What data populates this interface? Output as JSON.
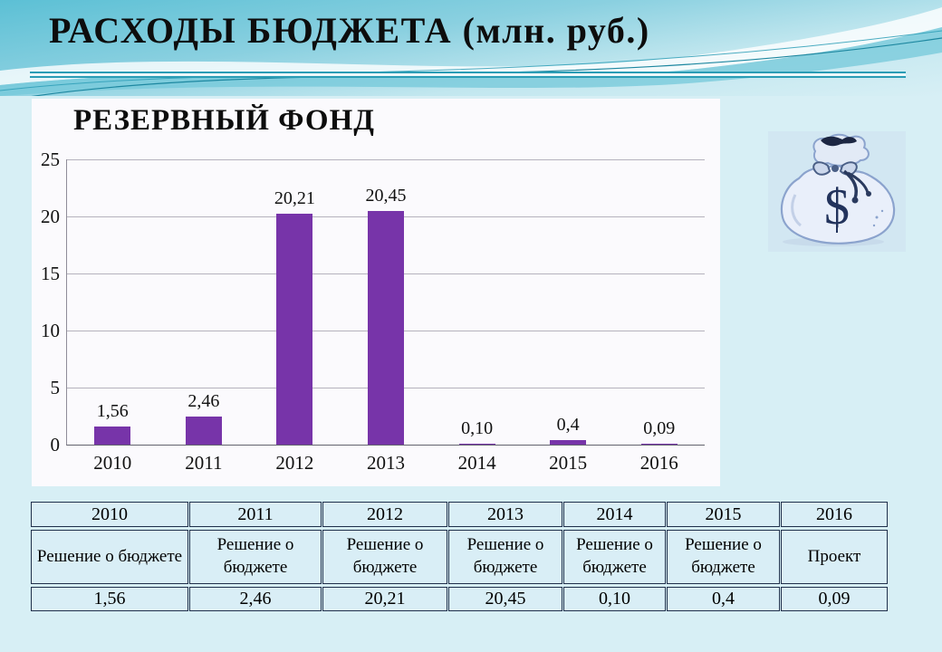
{
  "slide": {
    "title": "РАСХОДЫ БЮДЖЕТА (млн. руб.)"
  },
  "chart_data": {
    "type": "bar",
    "title": "РЕЗЕРВНЫЙ ФОНД",
    "categories": [
      "2010",
      "2011",
      "2012",
      "2013",
      "2014",
      "2015",
      "2016"
    ],
    "values": [
      1.56,
      2.46,
      20.21,
      20.45,
      0.1,
      0.4,
      0.09
    ],
    "value_labels": [
      "1,56",
      "2,46",
      "20,21",
      "20,45",
      "0,10",
      "0,4",
      "0,09"
    ],
    "xlabel": "",
    "ylabel": "",
    "ylim": [
      0,
      25
    ],
    "yticks": [
      0,
      5,
      10,
      15,
      20,
      25
    ],
    "grid": true,
    "legend": "none",
    "bar_color": "#7734a9"
  },
  "money_bag": {
    "symbol": "$"
  },
  "table": {
    "year_row": [
      "2010",
      "2011",
      "2012",
      "2013",
      "2014",
      "2015",
      "2016"
    ],
    "source_row": [
      "Решение о бюджете",
      "Решение о бюджете",
      "Решение о бюджете",
      "Решение о бюджете",
      "Решение о бюджете",
      "Решение о бюджете",
      "Проект"
    ],
    "value_row": [
      "1,56",
      "2,46",
      "20,21",
      "20,45",
      "0,10",
      "0,4",
      "0,09"
    ]
  },
  "colors": {
    "bar": "#7734a9",
    "underline_accent": "#2a9cb5",
    "table_cell_bg": "#d9eef6",
    "table_border": "#20304b",
    "slide_bg": "#d7eff5"
  }
}
